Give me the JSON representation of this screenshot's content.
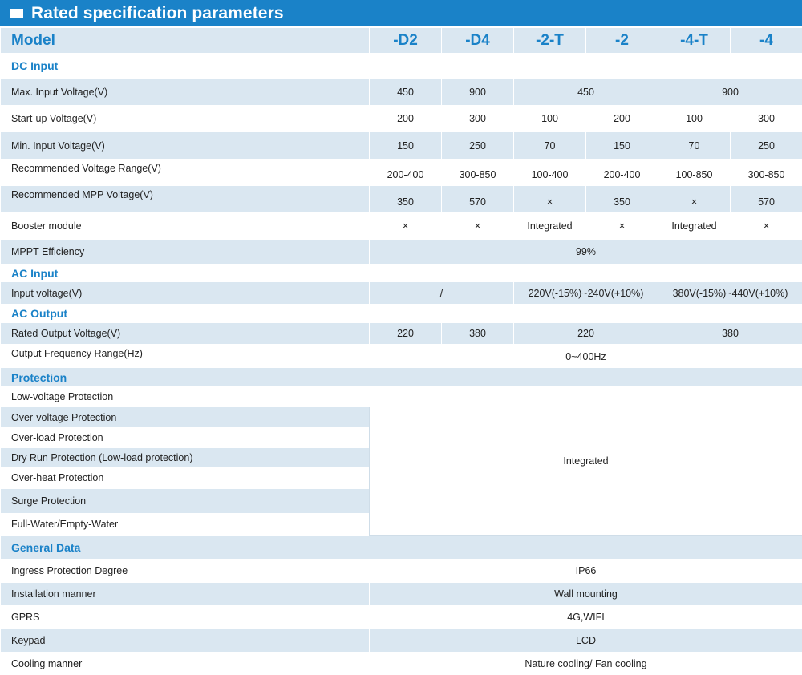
{
  "title": "Rated specification parameters",
  "header": {
    "model": "Model",
    "cols": [
      "-D2",
      "-D4",
      "-2-T",
      "-2",
      "-4-T",
      "-4"
    ]
  },
  "sections": {
    "dc_input": "DC Input",
    "ac_input": "AC Input",
    "ac_output": "AC Output",
    "protection": "Protection",
    "general": "General Data"
  },
  "dc": {
    "max_input": {
      "label": "Max. Input Voltage(V)",
      "v": [
        "450",
        "900",
        "450",
        "900"
      ]
    },
    "startup": {
      "label": "Start-up Voltage(V)",
      "v": [
        "200",
        "300",
        "100",
        "200",
        "100",
        "300"
      ]
    },
    "min_input": {
      "label": "Min. Input Voltage(V)",
      "v": [
        "150",
        "250",
        "70",
        "150",
        "70",
        "250"
      ]
    },
    "rec_range": {
      "label": "Recommended Voltage Range(V)",
      "v": [
        "200-400",
        "300-850",
        "100-400",
        "200-400",
        "100-850",
        "300-850"
      ]
    },
    "rec_mpp": {
      "label": "Recommended MPP  Voltage(V)",
      "v": [
        "350",
        "570",
        "×",
        "350",
        "×",
        "570"
      ]
    },
    "booster": {
      "label": "Booster module",
      "v": [
        "×",
        "×",
        "Integrated",
        "×",
        "Integrated",
        "×"
      ]
    },
    "mppt": {
      "label": "MPPT Efficiency",
      "v": "99%"
    }
  },
  "ac_in": {
    "label": "Input voltage(V)",
    "v": [
      "/",
      "220V(-15%)~240V(+10%)",
      "380V(-15%)~440V(+10%)"
    ]
  },
  "ac_out": {
    "rated": {
      "label": "Rated Output Voltage(V)",
      "v": [
        "220",
        "380",
        "220",
        "380"
      ]
    },
    "freq": {
      "label": "Output Frequency  Range(Hz)",
      "v": "0~400Hz"
    }
  },
  "protection": {
    "items": [
      "Low-voltage Protection",
      "Over-voltage Protection",
      "Over-load Protection",
      "Dry Run Protection  (Low-load protection)",
      "Over-heat Protection",
      "Surge Protection",
      "Full-Water/Empty-Water"
    ],
    "value": "Integrated"
  },
  "general": {
    "ip": {
      "label": "Ingress Protection Degree",
      "v": "IP66"
    },
    "install": {
      "label": "Installation manner",
      "v": "Wall mounting"
    },
    "gprs": {
      "label": "GPRS",
      "v": "4G,WIFI"
    },
    "keypad": {
      "label": "Keypad",
      "v": "LCD"
    },
    "cooling": {
      "label": "Cooling manner",
      "v": "Nature cooling/ Fan cooling"
    }
  }
}
